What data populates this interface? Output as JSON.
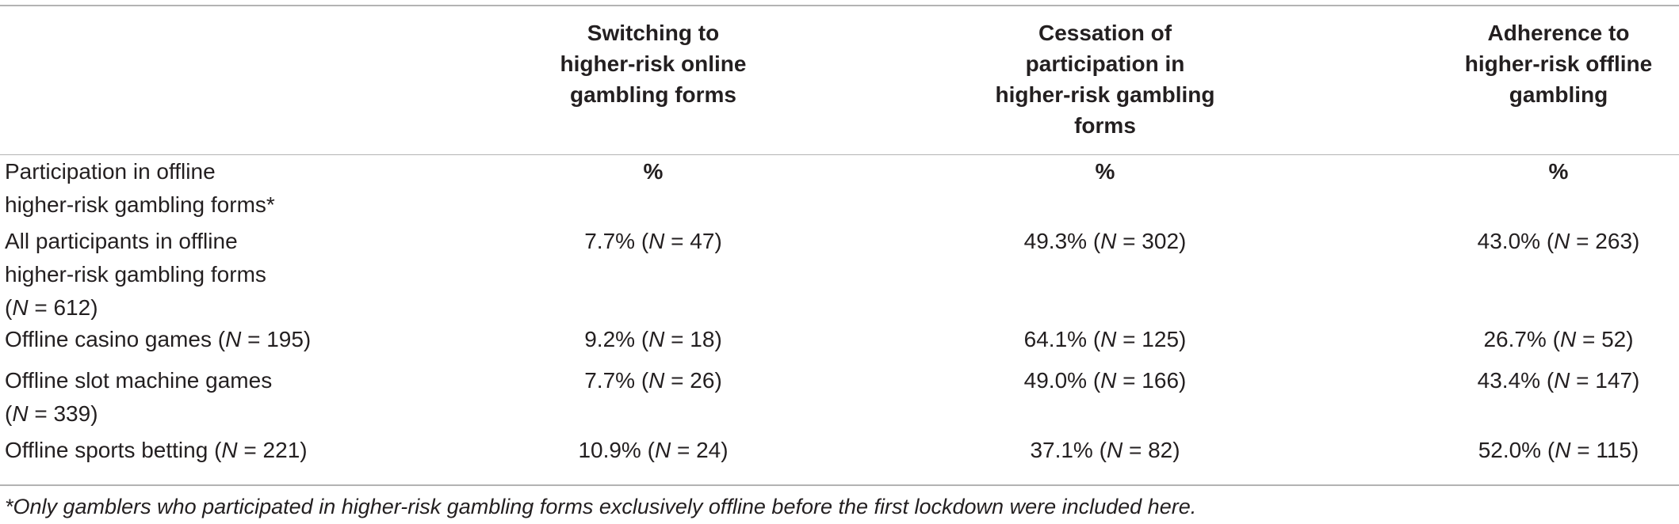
{
  "table": {
    "headers": [
      "",
      "Switching to higher-risk online gambling forms",
      "Cessation of participation in higher-risk gambling forms",
      "Adherence to higher-risk offline gambling"
    ],
    "header_lines": {
      "col1": [
        "Switching to",
        "higher-risk online",
        "gambling forms"
      ],
      "col2": [
        "Cessation of",
        "participation in",
        "higher-risk gambling",
        "forms"
      ],
      "col3": [
        "Adherence to",
        "higher-risk offline",
        "gambling"
      ]
    },
    "rows": [
      {
        "label_lines": [
          "Participation in offline",
          "higher-risk gambling forms*"
        ],
        "cells": [
          "%",
          "%",
          "%"
        ]
      },
      {
        "label_lines": [
          "All participants in offline",
          "higher-risk gambling forms",
          "(N = 612)"
        ],
        "cells": [
          "7.7% (N = 47)",
          "49.3% (N = 302)",
          "43.0% (N = 263)"
        ]
      },
      {
        "label_lines": [
          "Offline casino games (N = 195)"
        ],
        "cells": [
          "9.2% (N = 18)",
          "64.1% (N = 125)",
          "26.7% (N = 52)"
        ]
      },
      {
        "label_lines": [
          "Offline slot machine games",
          "(N = 339)"
        ],
        "cells": [
          "7.7% (N = 26)",
          "49.0% (N = 166)",
          "43.4% (N = 147)"
        ]
      },
      {
        "label_lines": [
          "Offline sports betting (N = 221)"
        ],
        "cells": [
          "10.9% (N = 24)",
          "37.1% (N = 82)",
          "52.0% (N = 115)"
        ]
      }
    ],
    "footnote": "*Only gamblers who participated in higher-risk gambling forms exclusively offline before the first lockdown were included here."
  },
  "chart_data": {
    "type": "table",
    "columns": [
      "Switching to higher-risk online gambling forms",
      "Cessation of participation in higher-risk gambling forms",
      "Adherence to higher-risk offline gambling"
    ],
    "rows": [
      {
        "label": "All participants in offline higher-risk gambling forms (N = 612)",
        "values": [
          "7.7% (N = 47)",
          "49.3% (N = 302)",
          "43.0% (N = 263)"
        ]
      },
      {
        "label": "Offline casino games (N = 195)",
        "values": [
          "9.2% (N = 18)",
          "64.1% (N = 125)",
          "26.7% (N = 52)"
        ]
      },
      {
        "label": "Offline slot machine games (N = 339)",
        "values": [
          "7.7% (N = 26)",
          "49.0% (N = 166)",
          "43.4% (N = 147)"
        ]
      },
      {
        "label": "Offline sports betting (N = 221)",
        "values": [
          "10.9% (N = 24)",
          "37.1% (N = 82)",
          "52.0% (N = 115)"
        ]
      }
    ]
  }
}
